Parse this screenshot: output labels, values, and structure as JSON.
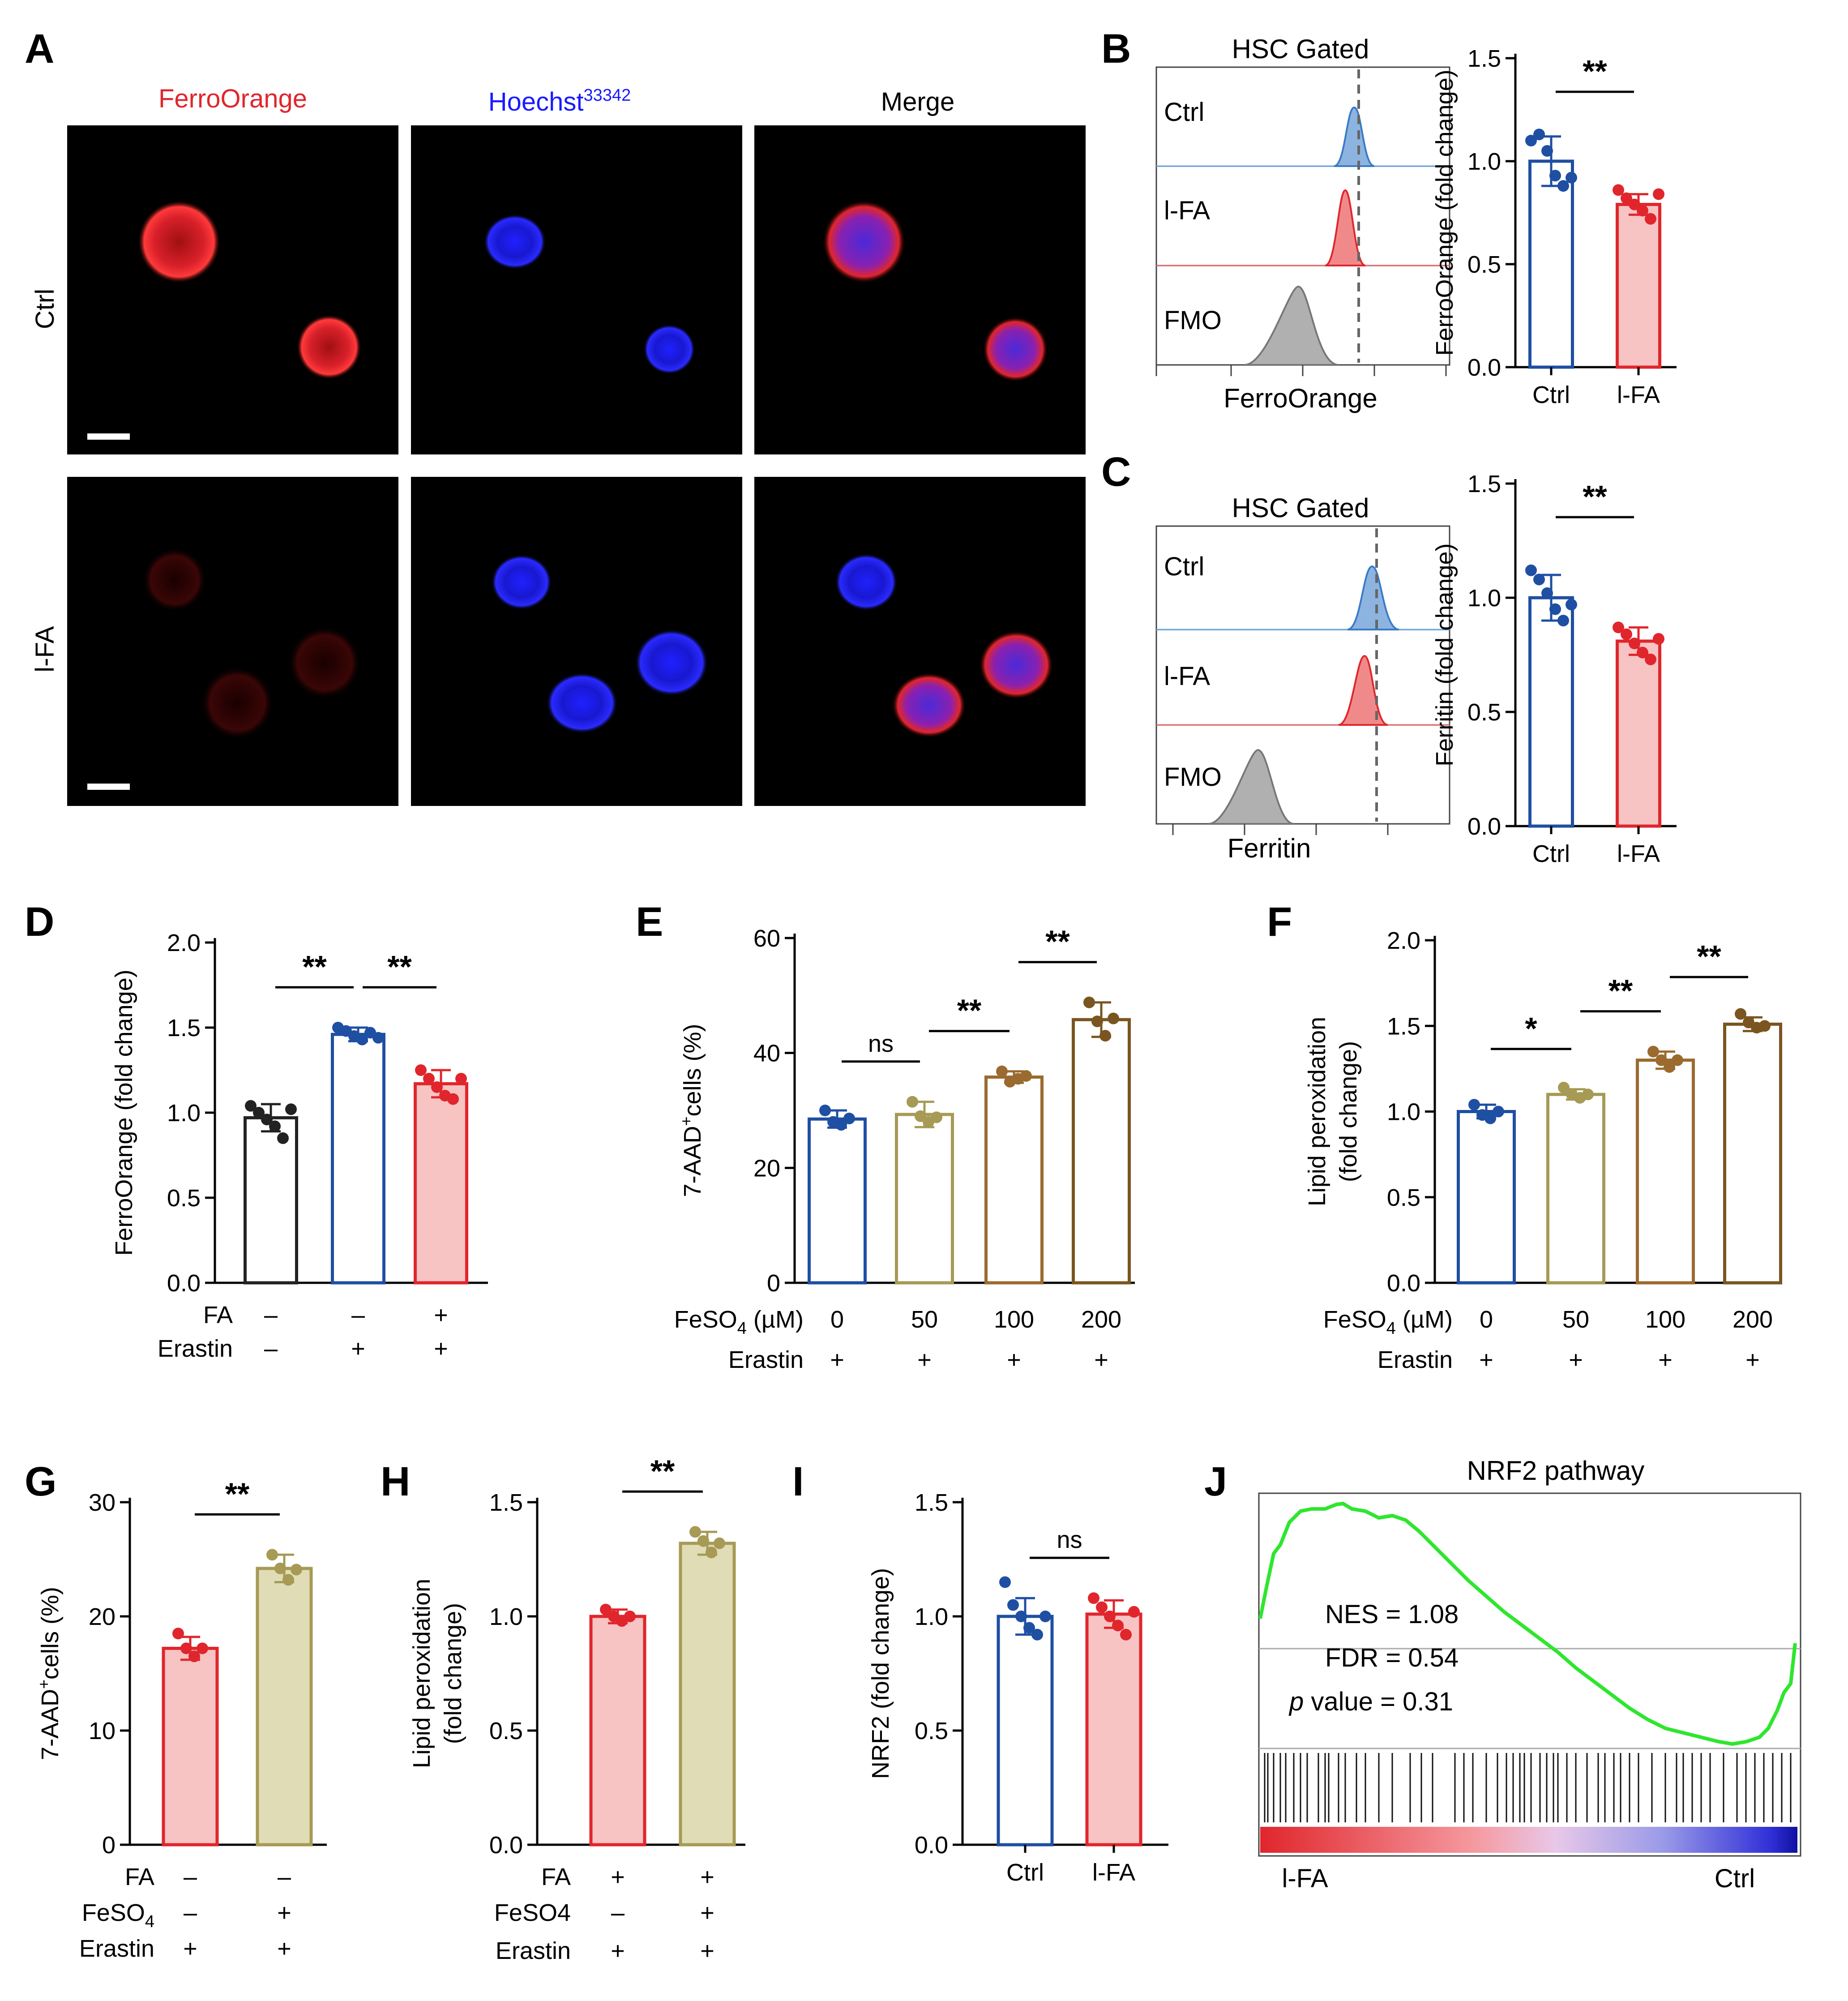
{
  "colors": {
    "blue": "#1f4fa3",
    "blueFill": "#ffffff",
    "red": "#e0262c",
    "redFill": "#f7c3c3",
    "black": "#222222",
    "olive": "#a69a55",
    "brown": "#9b6a2f",
    "darkbrown": "#7a5520",
    "khaki": "#e0dcb6",
    "hBlue": "#3a7bc8",
    "hBlueFill": "#8db4e0",
    "hRed": "#e0262c",
    "hRedFill": "#f08a8a",
    "hGray": "#9a9a9a",
    "gseaGreen": "#2ee62e"
  },
  "panelA": {
    "label": "A",
    "channels": [
      "FerroOrange",
      "Hoechst",
      "Merge"
    ],
    "hoechst_sup": "33342",
    "rows": [
      "Ctrl",
      "l-FA"
    ]
  },
  "panelB": {
    "label": "B",
    "gate_title": "HSC Gated",
    "tracks": [
      "Ctrl",
      "l-FA",
      "FMO"
    ],
    "xlabel": "FerroOrange"
  },
  "panelC": {
    "label": "C",
    "gate_title": "HSC Gated",
    "tracks": [
      "Ctrl",
      "l-FA",
      "FMO"
    ],
    "xlabel": "Ferritin"
  },
  "panelD_cond": {
    "rows": [
      {
        "name": "FA",
        "vals": [
          "–",
          "–",
          "+"
        ]
      },
      {
        "name": "Erastin",
        "vals": [
          "–",
          "+",
          "+"
        ]
      }
    ]
  },
  "panelE_cond": {
    "rows": [
      {
        "name": "FeSO4 (µM)",
        "vals": [
          "0",
          "50",
          "100",
          "200"
        ]
      },
      {
        "name": "Erastin",
        "vals": [
          "+",
          "+",
          "+",
          "+"
        ]
      }
    ]
  },
  "panelF_cond": {
    "rows": [
      {
        "name": "FeSO4 (µM)",
        "vals": [
          "0",
          "50",
          "100",
          "200"
        ]
      },
      {
        "name": "Erastin",
        "vals": [
          "+",
          "+",
          "+",
          "+"
        ]
      }
    ]
  },
  "panelG_cond": {
    "rows": [
      {
        "name": "FA",
        "vals": [
          "–",
          "–"
        ]
      },
      {
        "name": "FeSO4",
        "vals": [
          "–",
          "+"
        ]
      },
      {
        "name": "Erastin",
        "vals": [
          "+",
          "+"
        ]
      }
    ]
  },
  "panelH_cond": {
    "rows": [
      {
        "name": "FA",
        "vals": [
          "+",
          "+"
        ]
      },
      {
        "name": "FeSO4",
        "vals": [
          "–",
          "+"
        ]
      },
      {
        "name": "Erastin",
        "vals": [
          "+",
          "+"
        ]
      }
    ]
  },
  "panelJ": {
    "label": "J",
    "title": "NRF2 pathway",
    "nes": "NES = 1.08",
    "fdr": "FDR = 0.54",
    "p_italic": "p",
    "p_rest": " value = 0.31",
    "left_label": "l-FA",
    "right_label": "Ctrl"
  },
  "chart_data": [
    {
      "id": "B",
      "type": "bar",
      "title": "",
      "ylabel": "FerroOrange (fold change)",
      "ylim": [
        0,
        1.5
      ],
      "yticks": [
        "0.0",
        "0.5",
        "1.0",
        "1.5"
      ],
      "categories": [
        "Ctrl",
        "l-FA"
      ],
      "values": [
        1.0,
        0.79
      ],
      "errors": [
        0.12,
        0.05
      ],
      "points": [
        [
          1.1,
          1.13,
          1.05,
          0.93,
          0.88,
          0.92
        ],
        [
          0.86,
          0.82,
          0.79,
          0.76,
          0.72,
          0.84
        ]
      ],
      "colors": [
        "blue",
        "red"
      ],
      "fills": [
        "blueFill",
        "redFill"
      ],
      "sig": [
        {
          "from": 0,
          "to": 1,
          "text": "**"
        }
      ]
    },
    {
      "id": "C",
      "type": "bar",
      "title": "",
      "ylabel": "Ferritin (fold change)",
      "ylim": [
        0,
        1.5
      ],
      "yticks": [
        "0.0",
        "0.5",
        "1.0",
        "1.5"
      ],
      "categories": [
        "Ctrl",
        "l-FA"
      ],
      "values": [
        1.0,
        0.81
      ],
      "errors": [
        0.1,
        0.06
      ],
      "points": [
        [
          1.12,
          1.08,
          1.02,
          0.95,
          0.9,
          0.97
        ],
        [
          0.87,
          0.84,
          0.8,
          0.76,
          0.73,
          0.82
        ]
      ],
      "colors": [
        "blue",
        "red"
      ],
      "fills": [
        "blueFill",
        "redFill"
      ],
      "sig": [
        {
          "from": 0,
          "to": 1,
          "text": "**"
        }
      ]
    },
    {
      "id": "D",
      "type": "bar",
      "title": "",
      "ylabel": "FerroOrange (fold change)",
      "ylim": [
        0,
        2.0
      ],
      "yticks": [
        "0.0",
        "0.5",
        "1.0",
        "1.5",
        "2.0"
      ],
      "categories": [
        "",
        "",
        ""
      ],
      "values": [
        0.97,
        1.46,
        1.17
      ],
      "errors": [
        0.08,
        0.04,
        0.08
      ],
      "points": [
        [
          1.04,
          1.0,
          0.96,
          0.92,
          0.85,
          1.02
        ],
        [
          1.5,
          1.48,
          1.45,
          1.43,
          1.47,
          1.44
        ],
        [
          1.25,
          1.2,
          1.15,
          1.1,
          1.08,
          1.2
        ]
      ],
      "colors": [
        "black",
        "blue",
        "red"
      ],
      "fills": [
        "blueFill",
        "blueFill",
        "redFill"
      ],
      "sig": [
        {
          "from": 0,
          "to": 1,
          "text": "**"
        },
        {
          "from": 1,
          "to": 2,
          "text": "**"
        }
      ]
    },
    {
      "id": "E",
      "type": "bar",
      "title": "",
      "ylabel": "7-AAD+ cells (%)",
      "ylim": [
        0,
        60
      ],
      "yticks": [
        "0",
        "20",
        "40",
        "60"
      ],
      "categories": [
        "",
        "",
        "",
        ""
      ],
      "values": [
        28.5,
        29.3,
        35.8,
        45.8
      ],
      "errors": [
        1.5,
        2.2,
        1.0,
        3.0
      ],
      "points": [
        [
          30,
          28,
          27.5,
          28.6
        ],
        [
          31.5,
          29,
          28,
          28.8
        ],
        [
          36.8,
          35,
          35.5,
          36
        ],
        [
          48.8,
          45.5,
          43,
          46
        ]
      ],
      "colors": [
        "blue",
        "olive",
        "brown",
        "darkbrown"
      ],
      "fills": [
        "blueFill",
        "blueFill",
        "blueFill",
        "blueFill"
      ],
      "sig": [
        {
          "from": 0,
          "to": 1,
          "text": "ns"
        },
        {
          "from": 1,
          "to": 2,
          "text": "**"
        },
        {
          "from": 2,
          "to": 3,
          "text": "**"
        }
      ]
    },
    {
      "id": "F",
      "type": "bar",
      "title": "",
      "ylabel": "Lipid peroxidation",
      "ylabel2": "(fold change)",
      "ylim": [
        0,
        2.0
      ],
      "yticks": [
        "0.0",
        "0.5",
        "1.0",
        "1.5",
        "2.0"
      ],
      "categories": [
        "",
        "",
        "",
        ""
      ],
      "values": [
        1.0,
        1.1,
        1.3,
        1.51
      ],
      "errors": [
        0.04,
        0.03,
        0.05,
        0.04
      ],
      "points": [
        [
          1.04,
          0.98,
          0.96,
          1.0
        ],
        [
          1.14,
          1.1,
          1.08,
          1.1
        ],
        [
          1.35,
          1.3,
          1.26,
          1.3
        ],
        [
          1.57,
          1.52,
          1.49,
          1.5
        ]
      ],
      "colors": [
        "blue",
        "olive",
        "brown",
        "darkbrown"
      ],
      "fills": [
        "blueFill",
        "blueFill",
        "blueFill",
        "blueFill"
      ],
      "sig": [
        {
          "from": 0,
          "to": 1,
          "text": "*"
        },
        {
          "from": 1,
          "to": 2,
          "text": "**"
        },
        {
          "from": 2,
          "to": 3,
          "text": "**"
        }
      ]
    },
    {
      "id": "G",
      "type": "bar",
      "title": "",
      "ylabel": "7-AAD+ cells (%)",
      "ylim": [
        0,
        30
      ],
      "yticks": [
        "0",
        "10",
        "20",
        "30"
      ],
      "categories": [
        "",
        ""
      ],
      "values": [
        17.2,
        24.2
      ],
      "errors": [
        1.0,
        1.2
      ],
      "points": [
        [
          18.5,
          17.2,
          16.5,
          17.2
        ],
        [
          25.4,
          24.2,
          23.2,
          24.1
        ]
      ],
      "colors": [
        "red",
        "olive"
      ],
      "fills": [
        "redFill",
        "khaki"
      ],
      "sig": [
        {
          "from": 0,
          "to": 1,
          "text": "**"
        }
      ]
    },
    {
      "id": "H",
      "type": "bar",
      "title": "",
      "ylabel": "Lipid peroxidation",
      "ylabel2": "(fold change)",
      "ylim": [
        0,
        1.5
      ],
      "yticks": [
        "0.0",
        "0.5",
        "1.0",
        "1.5"
      ],
      "categories": [
        "",
        ""
      ],
      "values": [
        1.0,
        1.32
      ],
      "errors": [
        0.03,
        0.05
      ],
      "points": [
        [
          1.03,
          1.0,
          0.98,
          1.0
        ],
        [
          1.37,
          1.33,
          1.28,
          1.32
        ]
      ],
      "colors": [
        "red",
        "olive"
      ],
      "fills": [
        "redFill",
        "khaki"
      ],
      "sig": [
        {
          "from": 0,
          "to": 1,
          "text": "**"
        }
      ]
    },
    {
      "id": "I",
      "type": "bar",
      "title": "",
      "ylabel": "NRF2 (fold change)",
      "ylim": [
        0,
        1.5
      ],
      "yticks": [
        "0.0",
        "0.5",
        "1.0",
        "1.5"
      ],
      "categories": [
        "Ctrl",
        "l-FA"
      ],
      "values": [
        1.0,
        1.01
      ],
      "errors": [
        0.08,
        0.06
      ],
      "points": [
        [
          1.15,
          1.05,
          1.0,
          0.95,
          0.92,
          1.0
        ],
        [
          1.08,
          1.04,
          1.0,
          0.96,
          0.92,
          1.02
        ]
      ],
      "colors": [
        "blue",
        "red"
      ],
      "fills": [
        "blueFill",
        "redFill"
      ],
      "sig": [
        {
          "from": 0,
          "to": 1,
          "text": "ns"
        }
      ]
    }
  ]
}
